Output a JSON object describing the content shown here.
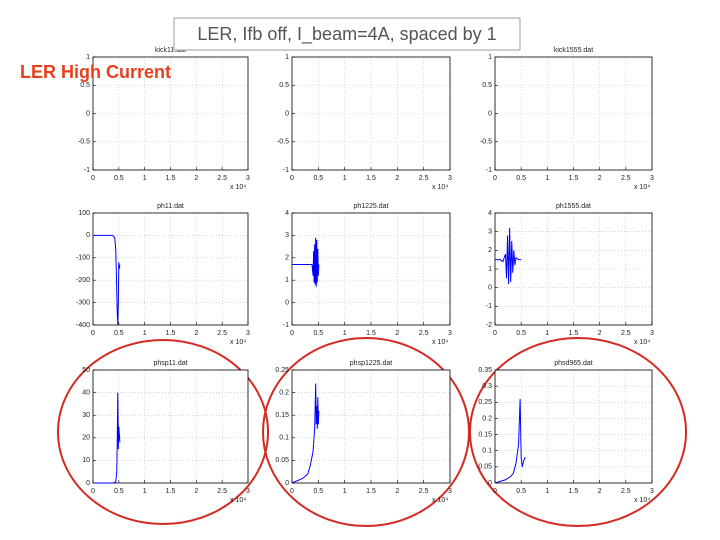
{
  "slide": {
    "title": "LER, Ifb off, I_beam=4A, spaced by 1",
    "label": "LER High Current"
  },
  "chart_data": [
    {
      "type": "line",
      "title": "kick11.dat",
      "xlim": [
        0,
        3
      ],
      "xticks": [
        0,
        0.5,
        1,
        1.5,
        2,
        2.5,
        3
      ],
      "x_scale": "x 10⁴",
      "ylim": [
        -1,
        1
      ],
      "yticks": [
        -1,
        -0.5,
        0,
        0.5,
        1
      ],
      "grid": true,
      "color": "#0000ff"
    },
    {
      "type": "line",
      "xlim": [
        0,
        3
      ],
      "xticks": [
        0,
        0.5,
        1,
        1.5,
        2,
        2.5,
        3
      ],
      "x_scale": "x 10⁴",
      "ylim": [
        -1,
        1
      ],
      "yticks": [
        -1,
        -0.5,
        0,
        0.5,
        1
      ],
      "grid": true,
      "color": "#0000ff"
    },
    {
      "type": "line",
      "title": "kick1555.dat",
      "xlim": [
        0,
        3
      ],
      "xticks": [
        0,
        0.5,
        1,
        1.5,
        2,
        2.5,
        3
      ],
      "x_scale": "x 10⁴",
      "ylim": [
        -1,
        1
      ],
      "yticks": [
        -1,
        -0.5,
        0,
        0.5,
        1
      ],
      "grid": true,
      "color": "#0000ff"
    },
    {
      "type": "line",
      "title": "ph11.dat",
      "xlim": [
        0,
        3
      ],
      "xticks": [
        0,
        0.5,
        1,
        1.5,
        2,
        2.5,
        3
      ],
      "x_scale": "x 10⁴",
      "ylim": [
        -400,
        100
      ],
      "yticks": [
        -400,
        -300,
        -200,
        -100,
        0,
        100
      ],
      "grid": true,
      "color": "#0000ff",
      "x": [
        0,
        0.1,
        0.2,
        0.3,
        0.38,
        0.42,
        0.44,
        0.45,
        0.46,
        0.47,
        0.48,
        0.49,
        0.5,
        0.51,
        0.52
      ],
      "values": [
        0,
        0,
        0,
        0,
        0,
        -10,
        -60,
        -150,
        -250,
        -350,
        -400,
        -300,
        -120,
        -150,
        -130
      ]
    },
    {
      "type": "line",
      "title": "ph1225.dat",
      "xlim": [
        0,
        3
      ],
      "xticks": [
        0,
        0.5,
        1,
        1.5,
        2,
        2.5,
        3
      ],
      "x_scale": "x 10⁴",
      "ylim": [
        -1,
        4
      ],
      "yticks": [
        -1,
        0,
        1,
        2,
        3,
        4
      ],
      "grid": true,
      "color": "#0000ff",
      "x": [
        0,
        0.1,
        0.2,
        0.3,
        0.38,
        0.4,
        0.41,
        0.42,
        0.43,
        0.44,
        0.45,
        0.46,
        0.47,
        0.48,
        0.49,
        0.5,
        0.51
      ],
      "values": [
        1.7,
        1.7,
        1.7,
        1.7,
        1.7,
        1.2,
        2.3,
        0.9,
        2.6,
        0.8,
        2.9,
        0.7,
        2.8,
        0.9,
        2.4,
        1.2,
        1.7
      ]
    },
    {
      "type": "line",
      "title": "ph1555.dat",
      "xlim": [
        0,
        3
      ],
      "xticks": [
        0,
        0.5,
        1,
        1.5,
        2,
        2.5,
        3
      ],
      "x_scale": "x 10⁴",
      "ylim": [
        -2,
        4
      ],
      "yticks": [
        -2,
        -1,
        0,
        1,
        2,
        3,
        4
      ],
      "grid": true,
      "color": "#0000ff",
      "x": [
        0,
        0.1,
        0.15,
        0.2,
        0.22,
        0.24,
        0.26,
        0.28,
        0.3,
        0.32,
        0.34,
        0.36,
        0.38,
        0.4,
        0.45,
        0.5
      ],
      "values": [
        1.5,
        1.5,
        1.4,
        1.8,
        0.5,
        2.8,
        0.2,
        3.2,
        0.3,
        2.5,
        0.8,
        2.0,
        1.2,
        1.6,
        1.5,
        1.5
      ]
    },
    {
      "type": "line",
      "title": "phsp11.dat",
      "xlim": [
        0,
        3
      ],
      "xticks": [
        0,
        0.5,
        1,
        1.5,
        2,
        2.5,
        3
      ],
      "x_scale": "x 10⁴",
      "ylim": [
        0,
        50
      ],
      "yticks": [
        0,
        10,
        20,
        30,
        40,
        50
      ],
      "grid": true,
      "color": "#0000ff",
      "x": [
        0,
        0.3,
        0.4,
        0.44,
        0.46,
        0.47,
        0.48,
        0.49,
        0.5,
        0.52
      ],
      "values": [
        0,
        0,
        0,
        0.5,
        5,
        20,
        40,
        15,
        25,
        18
      ]
    },
    {
      "type": "line",
      "title": "phsp1225.dat",
      "xlim": [
        0,
        3
      ],
      "xticks": [
        0,
        0.5,
        1,
        1.5,
        2,
        2.5,
        3
      ],
      "x_scale": "x 10⁴",
      "ylim": [
        0,
        0.25
      ],
      "yticks": [
        0,
        0.05,
        0.1,
        0.15,
        0.2,
        0.25
      ],
      "grid": true,
      "color": "#0000ff",
      "x": [
        0,
        0.1,
        0.2,
        0.3,
        0.35,
        0.4,
        0.43,
        0.45,
        0.46,
        0.47,
        0.48,
        0.49,
        0.5,
        0.51
      ],
      "values": [
        0,
        0.005,
        0.01,
        0.02,
        0.04,
        0.07,
        0.12,
        0.22,
        0.13,
        0.17,
        0.12,
        0.19,
        0.13,
        0.16
      ]
    },
    {
      "type": "line",
      "title": "phsd965.dat",
      "xlim": [
        0,
        3
      ],
      "xticks": [
        0,
        0.5,
        1,
        1.5,
        2,
        2.5,
        3
      ],
      "x_scale": "x 10⁴",
      "ylim": [
        0,
        0.35
      ],
      "yticks": [
        0,
        0.05,
        0.1,
        0.15,
        0.2,
        0.25,
        0.3,
        0.35
      ],
      "grid": true,
      "color": "#0000ff",
      "x": [
        0,
        0.1,
        0.2,
        0.3,
        0.35,
        0.4,
        0.45,
        0.48,
        0.5,
        0.52,
        0.55,
        0.58
      ],
      "values": [
        0,
        0.005,
        0.01,
        0.02,
        0.03,
        0.06,
        0.12,
        0.26,
        0.08,
        0.05,
        0.07,
        0.08
      ]
    }
  ]
}
